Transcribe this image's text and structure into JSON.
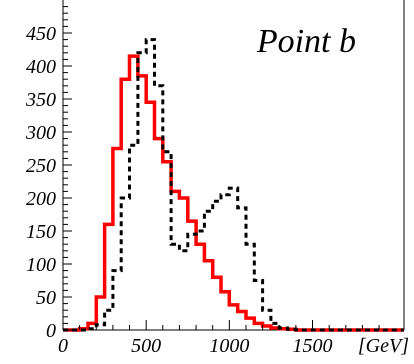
{
  "chart_data": {
    "type": "line",
    "title": "Point b",
    "xlabel": "[GeV]",
    "ylabel": "",
    "xlim": [
      0,
      2050
    ],
    "ylim": [
      0,
      500
    ],
    "x_ticks": [
      0,
      500,
      1000,
      1500
    ],
    "x_tick_labels": [
      "0",
      "500",
      "1000",
      "1500"
    ],
    "y_ticks": [
      0,
      50,
      100,
      150,
      200,
      250,
      300,
      350,
      400,
      450
    ],
    "y_tick_labels": [
      "0",
      "50",
      "100",
      "150",
      "200",
      "250",
      "300",
      "350",
      "400",
      "450"
    ],
    "grid": false,
    "legend": "none",
    "bin_width": 50,
    "series": [
      {
        "color": "#ff0000",
        "style": "solid",
        "x": [
          0,
          50,
          100,
          150,
          200,
          250,
          300,
          350,
          400,
          450,
          500,
          550,
          600,
          650,
          700,
          750,
          800,
          850,
          900,
          950,
          1000,
          1050,
          1100,
          1150,
          1200,
          1250,
          1300,
          1350,
          1400,
          1450,
          1500,
          1550,
          1600,
          1650,
          1700,
          1750,
          1800,
          1850,
          1900,
          1950,
          2000
        ],
        "values": [
          0,
          0,
          2,
          10,
          50,
          160,
          275,
          380,
          415,
          385,
          345,
          290,
          255,
          210,
          200,
          165,
          130,
          105,
          80,
          58,
          38,
          28,
          18,
          10,
          6,
          3,
          2,
          1,
          0,
          0,
          0,
          0,
          0,
          0,
          0,
          0,
          0,
          0,
          0,
          0,
          0
        ]
      },
      {
        "color": "#000000",
        "style": "dashed",
        "x": [
          0,
          50,
          100,
          150,
          200,
          250,
          300,
          350,
          400,
          450,
          500,
          550,
          600,
          650,
          700,
          750,
          800,
          850,
          900,
          950,
          1000,
          1050,
          1100,
          1150,
          1200,
          1250,
          1300,
          1350,
          1400,
          1450,
          1500,
          1550,
          1600,
          1650,
          1700,
          1750,
          1800,
          1850,
          1900,
          1950,
          2000
        ],
        "values": [
          0,
          0,
          0,
          2,
          8,
          30,
          90,
          200,
          280,
          420,
          440,
          370,
          270,
          130,
          120,
          145,
          150,
          180,
          195,
          205,
          215,
          185,
          130,
          75,
          30,
          10,
          3,
          1,
          0,
          0,
          0,
          0,
          0,
          0,
          0,
          0,
          0,
          0,
          0,
          0,
          0
        ]
      }
    ]
  }
}
